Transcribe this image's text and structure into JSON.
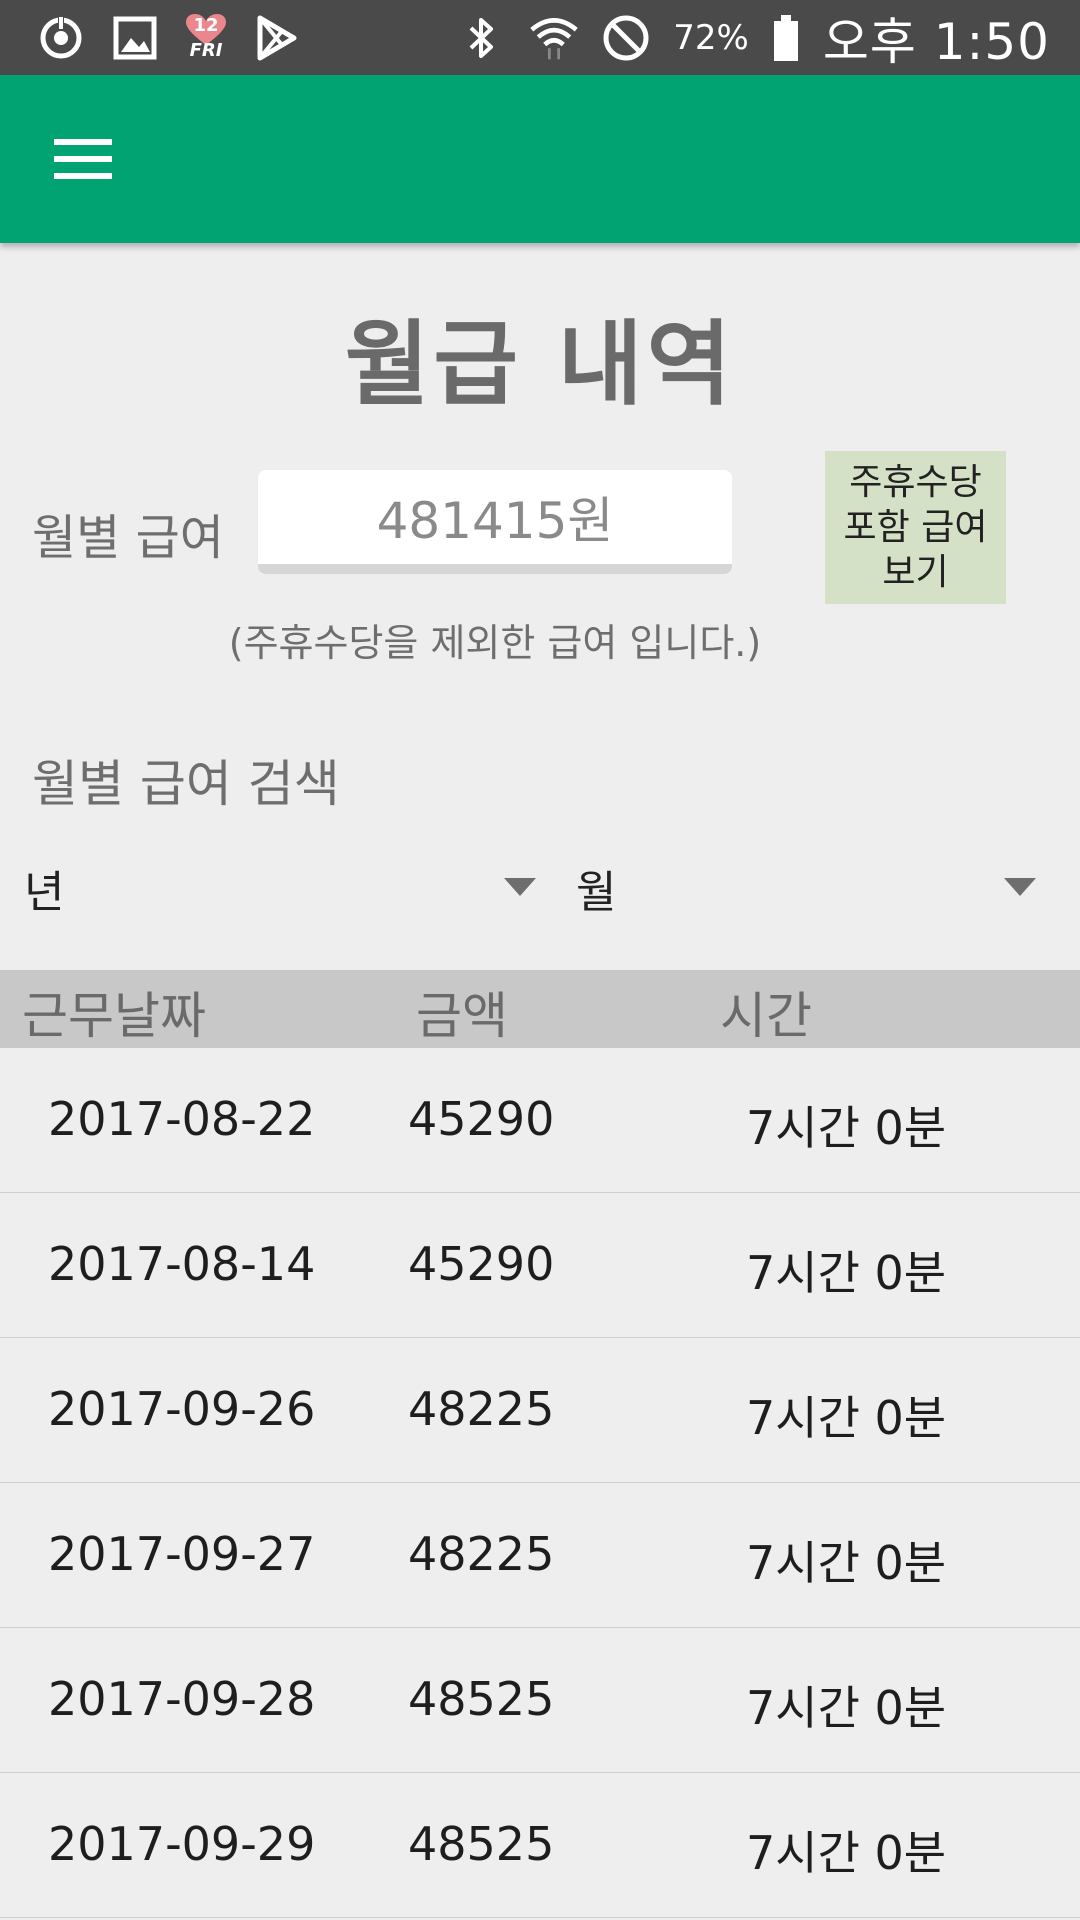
{
  "status_bar": {
    "heart_date": "12",
    "heart_day": "FRI",
    "battery": "72%",
    "time": "오후 1:50",
    "icons": [
      "sync-icon",
      "image-icon",
      "heart-calendar-icon",
      "play-store-icon",
      "bluetooth-icon",
      "wifi-icon",
      "no-disturb-icon",
      "battery-icon"
    ]
  },
  "app_bar": {
    "color": "#00a371",
    "menu_icon": "hamburger-menu-icon"
  },
  "page": {
    "title": "월급 내역",
    "salary_label": "월별 급여",
    "salary_value": "481415원",
    "holiday_button_lines": [
      "주휴수당",
      "포함 급여",
      "보기"
    ],
    "salary_note": "(주휴수당을 제외한 급여 입니다.)",
    "search_heading": "월별 급여 검색",
    "year_select": "년",
    "month_select": "월"
  },
  "table": {
    "headers": {
      "date": "근무날짜",
      "amount": "금액",
      "time": "시간"
    },
    "rows": [
      {
        "date": "2017-08-22",
        "amount": "45290",
        "time": "7시간 0분"
      },
      {
        "date": "2017-08-14",
        "amount": "45290",
        "time": "7시간 0분"
      },
      {
        "date": "2017-09-26",
        "amount": "48225",
        "time": "7시간 0분"
      },
      {
        "date": "2017-09-27",
        "amount": "48225",
        "time": "7시간 0분"
      },
      {
        "date": "2017-09-28",
        "amount": "48525",
        "time": "7시간 0분"
      },
      {
        "date": "2017-09-29",
        "amount": "48525",
        "time": "7시간 0분"
      }
    ]
  }
}
